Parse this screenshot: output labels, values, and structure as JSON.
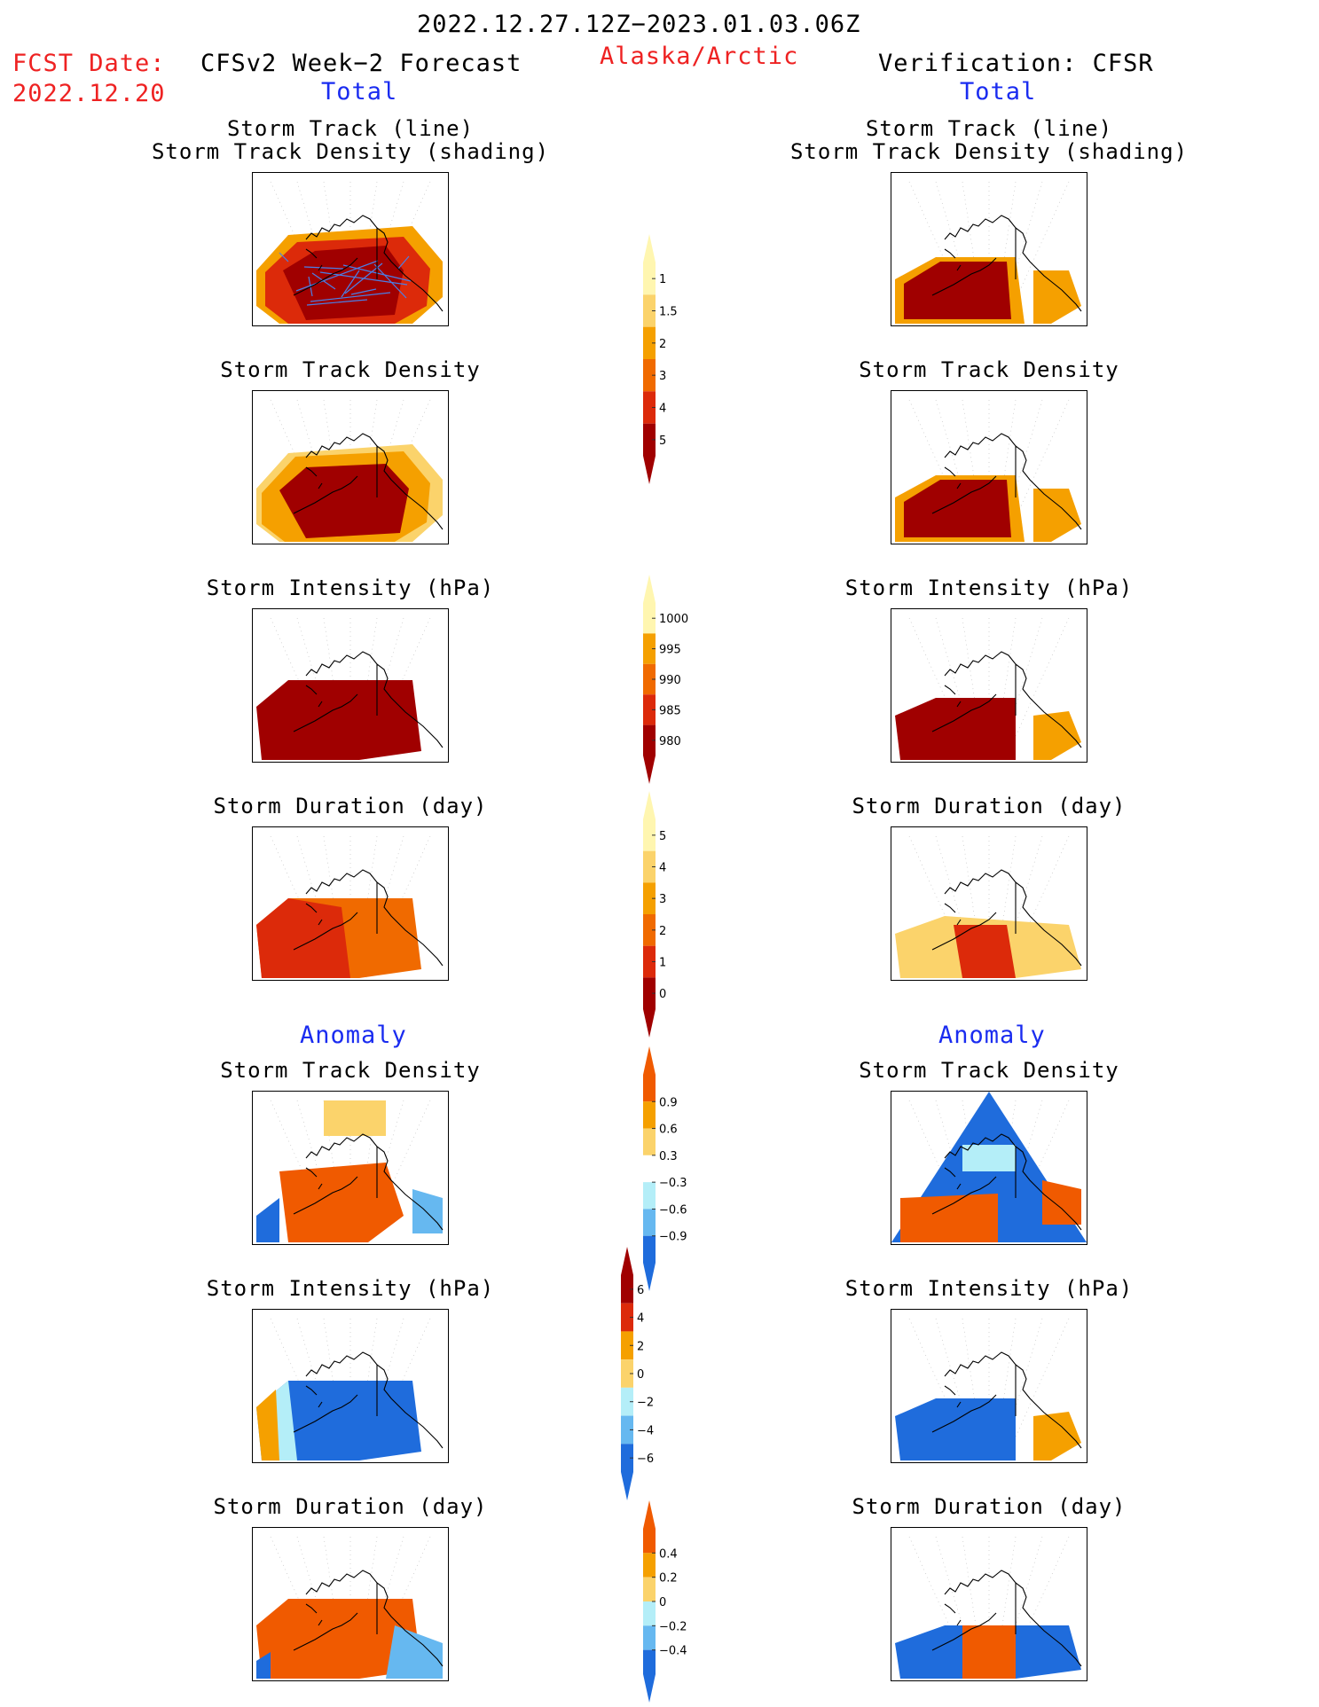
{
  "header": {
    "period": "2022.12.27.12Z−2023.01.03.06Z",
    "fcst_label": "FCST Date:",
    "fcst_date": "2022.12.20",
    "left_title": "CFSv2 Week−2 Forecast",
    "region": "Alaska/Arctic",
    "right_title": "Verification: CFSR",
    "left_sub": "Total",
    "right_sub": "Total"
  },
  "sections": {
    "anomaly_left": "Anomaly",
    "anomaly_right": "Anomaly"
  },
  "panel_titles": {
    "track_line": "Storm Track (line)",
    "track_shading": "Storm Track Density (shading)",
    "density": "Storm Track Density",
    "intensity": "Storm Intensity (hPa)",
    "duration": "Storm Duration (day)"
  },
  "colors": {
    "darkred": "#a00000",
    "red": "#dc2a0a",
    "orange": "#f5a000",
    "lightorange": "#fbd36b",
    "yellow": "#fff6b0",
    "cyan": "#b4eef8",
    "lightblue": "#66b8f0",
    "blue": "#1f6cdc"
  },
  "chart_data": [
    {
      "type": "heatmap",
      "id": "colorbar-total-density",
      "colors": [
        "#fff6b0",
        "#fbd36b",
        "#f5a000",
        "#f06a00",
        "#dc2a0a",
        "#a00000"
      ],
      "ticks": [
        "1",
        "1.5",
        "2",
        "3",
        "4",
        "5"
      ]
    },
    {
      "type": "heatmap",
      "id": "colorbar-total-intensity",
      "colors": [
        "#fff6b0",
        "#f5a000",
        "#f06a00",
        "#dc2a0a",
        "#a00000"
      ],
      "ticks": [
        "1000",
        "995",
        "990",
        "985",
        "980"
      ]
    },
    {
      "type": "heatmap",
      "id": "colorbar-total-duration",
      "colors": [
        "#fff6b0",
        "#fbd36b",
        "#f5a000",
        "#f06a00",
        "#dc2a0a",
        "#a00000"
      ],
      "ticks": [
        "5",
        "4",
        "3",
        "2",
        "1",
        "0"
      ]
    },
    {
      "type": "heatmap",
      "id": "colorbar-anom-density",
      "colors": [
        "#f05a00",
        "#f5a000",
        "#fbd36b",
        "#ffffff",
        "#b4eef8",
        "#66b8f0",
        "#1f6cdc"
      ],
      "ticks": [
        "0.9",
        "0.6",
        "0.3",
        "−0.3",
        "−0.6",
        "−0.9"
      ]
    },
    {
      "type": "heatmap",
      "id": "colorbar-anom-intensity",
      "colors": [
        "#a00000",
        "#dc2a0a",
        "#f5a000",
        "#fbd36b",
        "#b4eef8",
        "#66b8f0",
        "#1f6cdc"
      ],
      "ticks": [
        "6",
        "4",
        "2",
        "0",
        "−2",
        "−4",
        "−6"
      ]
    },
    {
      "type": "heatmap",
      "id": "colorbar-anom-duration",
      "colors": [
        "#f05a00",
        "#f5a000",
        "#fbd36b",
        "#b4eef8",
        "#66b8f0",
        "#1f6cdc"
      ],
      "ticks": [
        "0.4",
        "0.2",
        "0",
        "−0.2",
        "−0.4"
      ]
    }
  ]
}
